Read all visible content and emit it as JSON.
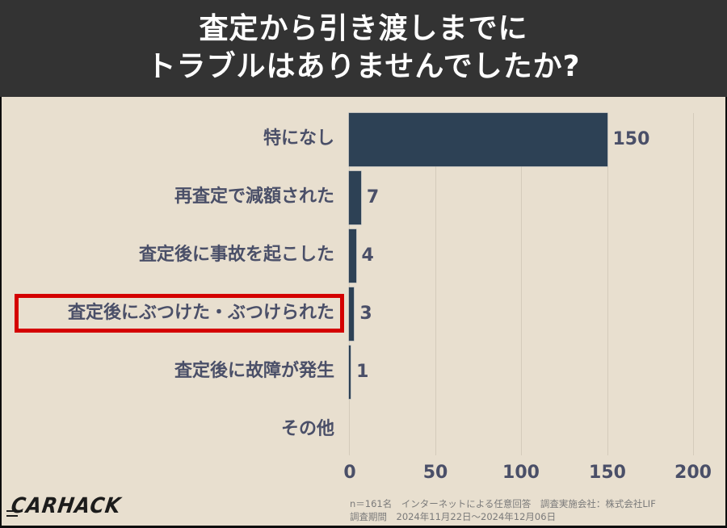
{
  "header": {
    "title_line1": "査定から引き渡しまでに",
    "title_line2": "トラブルはありませんでしたか?"
  },
  "colors": {
    "header_bg": "#333333",
    "background": "#e8dfcf",
    "bar": "#2d4155",
    "label": "#4a4f68",
    "highlight": "#d40000",
    "gridline": "#d4cbbb"
  },
  "chart_data": {
    "type": "bar",
    "orientation": "horizontal",
    "title": "査定から引き渡しまでにトラブルはありませんでしたか?",
    "categories": [
      "特になし",
      "再査定で減額された",
      "査定後に事故を起こした",
      "査定後にぶつけた・ぶつけられた",
      "査定後に故障が発生",
      "その他"
    ],
    "values": [
      150,
      7,
      4,
      3,
      1,
      0
    ],
    "value_labels": [
      "150",
      "7",
      "4",
      "3",
      "1",
      ""
    ],
    "highlighted_category": "査定後にぶつけた・ぶつけられた",
    "xlabel": "",
    "ylabel": "",
    "xlim": [
      0,
      200
    ],
    "xticks": [
      "0",
      "50",
      "100",
      "150",
      "200"
    ],
    "grid": "vertical",
    "legend": "none"
  },
  "footer": {
    "note_line1": "n＝161名　インターネットによる任意回答　調査実施会社：株式会社LIF",
    "note_line2": "調査期間　2024年11月22日～2024年12月06日",
    "logo": "CARHACK"
  }
}
